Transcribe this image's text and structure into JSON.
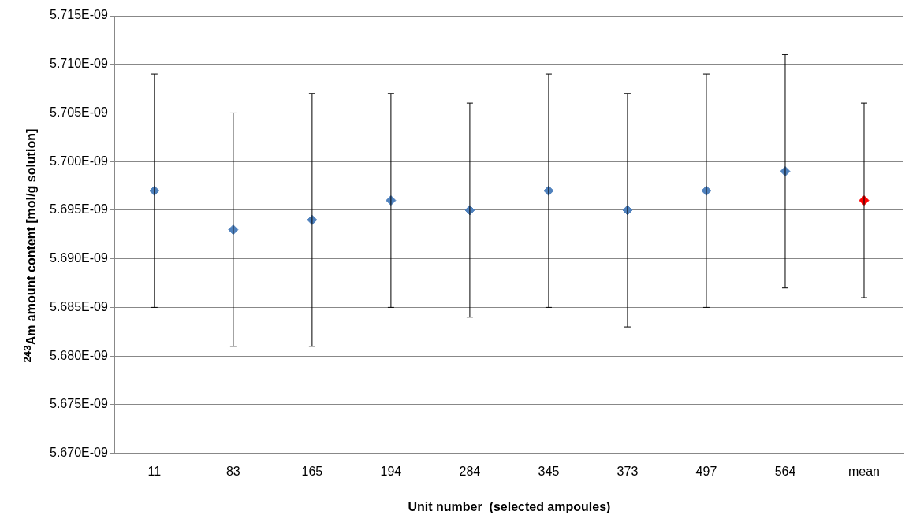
{
  "chart_data": {
    "type": "scatter",
    "xlabel": "Unit number  (selected ampoules)",
    "ylabel": "$^{243}$Am amount content [mol/g solution]",
    "categories": [
      "11",
      "83",
      "165",
      "194",
      "284",
      "345",
      "373",
      "497",
      "564",
      "mean"
    ],
    "values": [
      5.697e-09,
      5.693e-09,
      5.694e-09,
      5.696e-09,
      5.695e-09,
      5.697e-09,
      5.695e-09,
      5.697e-09,
      5.699e-09,
      5.696e-09
    ],
    "colors": [
      "#4f81bd",
      "#4f81bd",
      "#4f81bd",
      "#4f81bd",
      "#4f81bd",
      "#4f81bd",
      "#4f81bd",
      "#4f81bd",
      "#4f81bd",
      "#ff0000"
    ],
    "errors": [
      [
        5.685e-09,
        5.709e-09
      ],
      [
        5.681e-09,
        5.705e-09
      ],
      [
        5.681e-09,
        5.707e-09
      ],
      [
        5.685e-09,
        5.707e-09
      ],
      [
        5.684e-09,
        5.706e-09
      ],
      [
        5.685e-09,
        5.709e-09
      ],
      [
        5.683e-09,
        5.707e-09
      ],
      [
        5.685e-09,
        5.709e-09
      ],
      [
        5.687e-09,
        5.711e-09
      ],
      [
        5.686e-09,
        5.706e-09
      ]
    ],
    "ylim": [
      5.67e-09,
      5.715e-09
    ],
    "yticks": [
      {
        "value": 5.67e-09,
        "label": "5.670E-09"
      },
      {
        "value": 5.675e-09,
        "label": "5.675E-09"
      },
      {
        "value": 5.68e-09,
        "label": "5.680E-09"
      },
      {
        "value": 5.685e-09,
        "label": "5.685E-09"
      },
      {
        "value": 5.69e-09,
        "label": "5.690E-09"
      },
      {
        "value": 5.695e-09,
        "label": "5.695E-09"
      },
      {
        "value": 5.7e-09,
        "label": "5.700E-09"
      },
      {
        "value": 5.705e-09,
        "label": "5.705E-09"
      },
      {
        "value": 5.71e-09,
        "label": "5.710E-09"
      },
      {
        "value": 5.715e-09,
        "label": "5.715E-09"
      }
    ],
    "grid": "y",
    "marker": "diamond",
    "legend": false
  }
}
